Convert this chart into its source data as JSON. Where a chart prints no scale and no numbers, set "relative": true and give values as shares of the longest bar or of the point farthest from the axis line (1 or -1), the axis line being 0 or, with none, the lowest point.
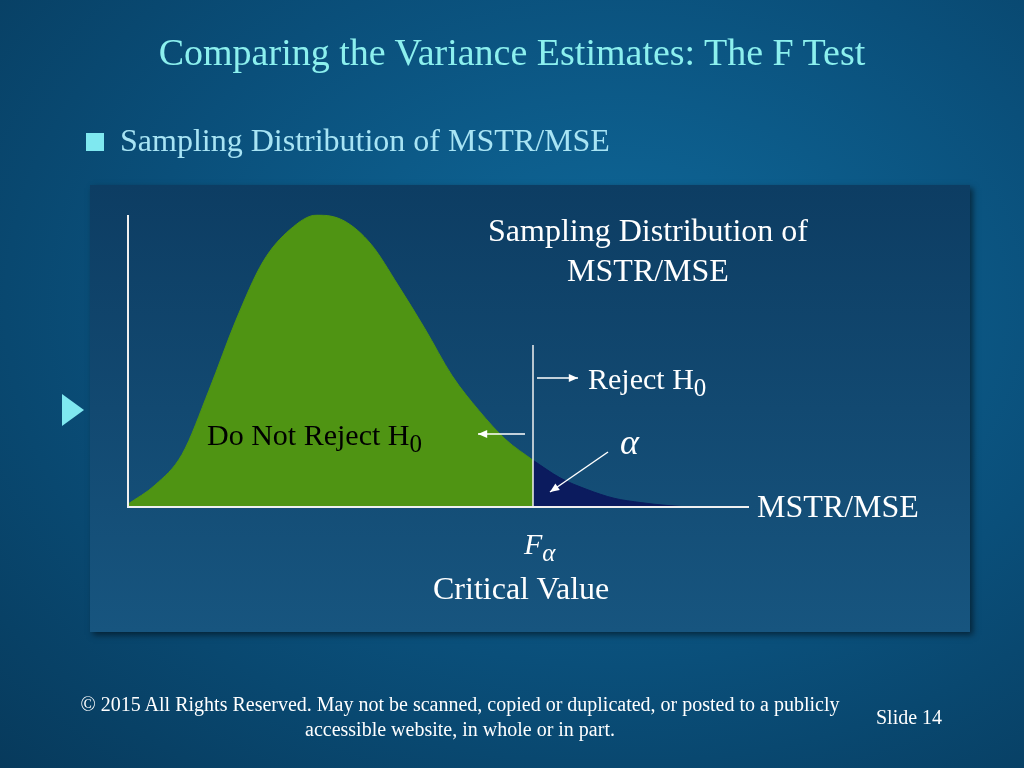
{
  "chart_data": {
    "type": "area",
    "title": "Comparing the Variance Estimates: The F Test",
    "subtitle": "Sampling Distribution of MSTR/MSE",
    "xlabel": "MSTR/MSE",
    "relative": true,
    "categories": [
      null,
      null,
      null,
      null,
      null,
      null,
      null,
      null,
      null,
      null,
      null,
      null,
      null,
      null,
      null,
      null,
      null,
      null,
      null,
      null,
      null,
      null,
      null,
      null
    ],
    "series": [
      {
        "color": "#4f9413",
        "values": [
          0.01,
          0.075,
          0.18,
          0.4,
          0.64,
          0.84,
          0.95,
          1,
          0.98,
          0.9,
          0.76,
          0.61,
          0.45,
          0.33,
          0.23,
          0.16,
          null,
          null,
          null,
          null,
          null,
          null,
          null,
          null
        ]
      },
      {
        "color": "#0b1b5e",
        "values": [
          null,
          null,
          null,
          null,
          null,
          null,
          null,
          null,
          null,
          null,
          null,
          null,
          null,
          null,
          null,
          0.16,
          0.1,
          0.06,
          0.03,
          0.015,
          0.005,
          0,
          0,
          0
        ]
      }
    ],
    "annotations": [
      "Sampling Distribution of MSTR/MSE",
      "Reject H$_{0}$",
      "Do Not Reject H$_{0}$",
      "α",
      "F$_{α}$",
      "Critical Value",
      "© 2015 All Rights Reserved.  May not be scanned, copied or duplicated, or posted to a publicly accessible website, in whole or in part.",
      "Slide  14"
    ]
  }
}
